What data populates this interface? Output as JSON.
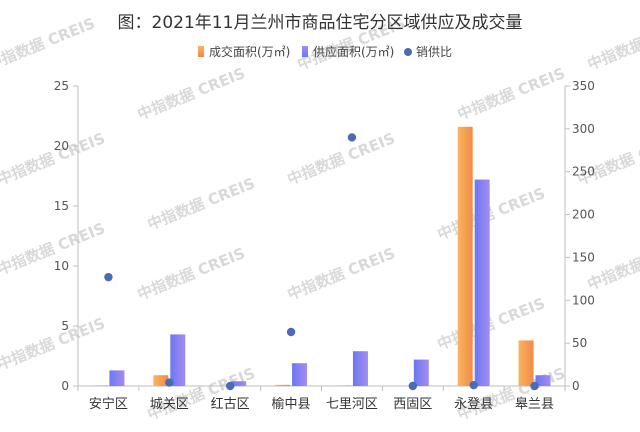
{
  "chart_data": {
    "type": "bar",
    "title": "图：2021年11月兰州市商品住宅分区域供应及成交量",
    "watermark": "中指数据 CREIS",
    "categories": [
      "安宁区",
      "城关区",
      "红古区",
      "榆中县",
      "七里河区",
      "西固区",
      "永登县",
      "皋兰县"
    ],
    "series": [
      {
        "name": "成交面积(万㎡)",
        "axis": "left",
        "kind": "bar",
        "color": "#f2a25a",
        "values": [
          0.05,
          0.9,
          0.0,
          0.1,
          0.05,
          0.0,
          21.6,
          3.8
        ]
      },
      {
        "name": "供应面积(万㎡)",
        "axis": "left",
        "kind": "bar",
        "color": "#7b7ef0",
        "values": [
          1.3,
          4.3,
          0.4,
          1.9,
          2.9,
          2.2,
          17.2,
          0.9
        ]
      },
      {
        "name": "销供比",
        "axis": "right",
        "kind": "scatter",
        "color": "#4a6cb5",
        "values": [
          127,
          4,
          0,
          63,
          290,
          0,
          1,
          0
        ]
      }
    ],
    "y_left": {
      "min": 0,
      "max": 25,
      "ticks": [
        0,
        5,
        10,
        15,
        20,
        25
      ]
    },
    "y_right": {
      "min": 0,
      "max": 350,
      "ticks": [
        0,
        50,
        100,
        150,
        200,
        250,
        300,
        350
      ]
    },
    "legend": "top-center",
    "grid": false
  }
}
